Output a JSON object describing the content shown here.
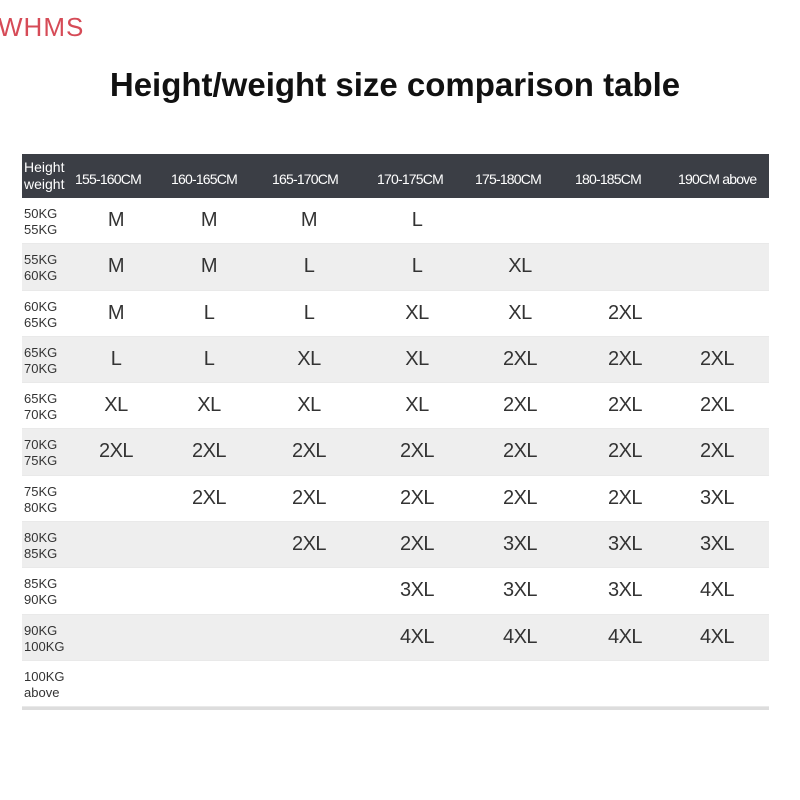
{
  "brand": "WHMS",
  "title": "Height/weight size comparison table",
  "table": {
    "corner": [
      "Height",
      "weight"
    ],
    "heights": [
      "155-160CM",
      "160-165CM",
      "165-170CM",
      "170-175CM",
      "175-180CM",
      "180-185CM",
      "190CM above"
    ],
    "rows": [
      {
        "weight": [
          "50KG",
          "55KG"
        ],
        "sizes": [
          "M",
          "M",
          "M",
          "L",
          "",
          "",
          ""
        ]
      },
      {
        "weight": [
          "55KG",
          "60KG"
        ],
        "sizes": [
          "M",
          "M",
          "L",
          "L",
          "XL",
          "",
          ""
        ]
      },
      {
        "weight": [
          "60KG",
          "65KG"
        ],
        "sizes": [
          "M",
          "L",
          "L",
          "XL",
          "XL",
          "2XL",
          ""
        ]
      },
      {
        "weight": [
          "65KG",
          "70KG"
        ],
        "sizes": [
          "L",
          "L",
          "XL",
          "XL",
          "2XL",
          "2XL",
          "2XL"
        ]
      },
      {
        "weight": [
          "65KG",
          "70KG"
        ],
        "sizes": [
          "XL",
          "XL",
          "XL",
          "XL",
          "2XL",
          "2XL",
          "2XL"
        ]
      },
      {
        "weight": [
          "70KG",
          "75KG"
        ],
        "sizes": [
          "2XL",
          "2XL",
          "2XL",
          "2XL",
          "2XL",
          "2XL",
          "2XL"
        ]
      },
      {
        "weight": [
          "75KG",
          "80KG"
        ],
        "sizes": [
          "",
          "2XL",
          "2XL",
          "2XL",
          "2XL",
          "2XL",
          "3XL"
        ]
      },
      {
        "weight": [
          "80KG",
          "85KG"
        ],
        "sizes": [
          "",
          "",
          "2XL",
          "2XL",
          "3XL",
          "3XL",
          "3XL"
        ]
      },
      {
        "weight": [
          "85KG",
          "90KG"
        ],
        "sizes": [
          "",
          "",
          "",
          "3XL",
          "3XL",
          "3XL",
          "4XL"
        ]
      },
      {
        "weight": [
          "90KG",
          "100KG"
        ],
        "sizes": [
          "",
          "",
          "",
          "4XL",
          "4XL",
          "4XL",
          "4XL"
        ]
      },
      {
        "weight": [
          "100KG",
          "above"
        ],
        "sizes": [
          "",
          "",
          "",
          "",
          "",
          "",
          ""
        ]
      }
    ]
  }
}
